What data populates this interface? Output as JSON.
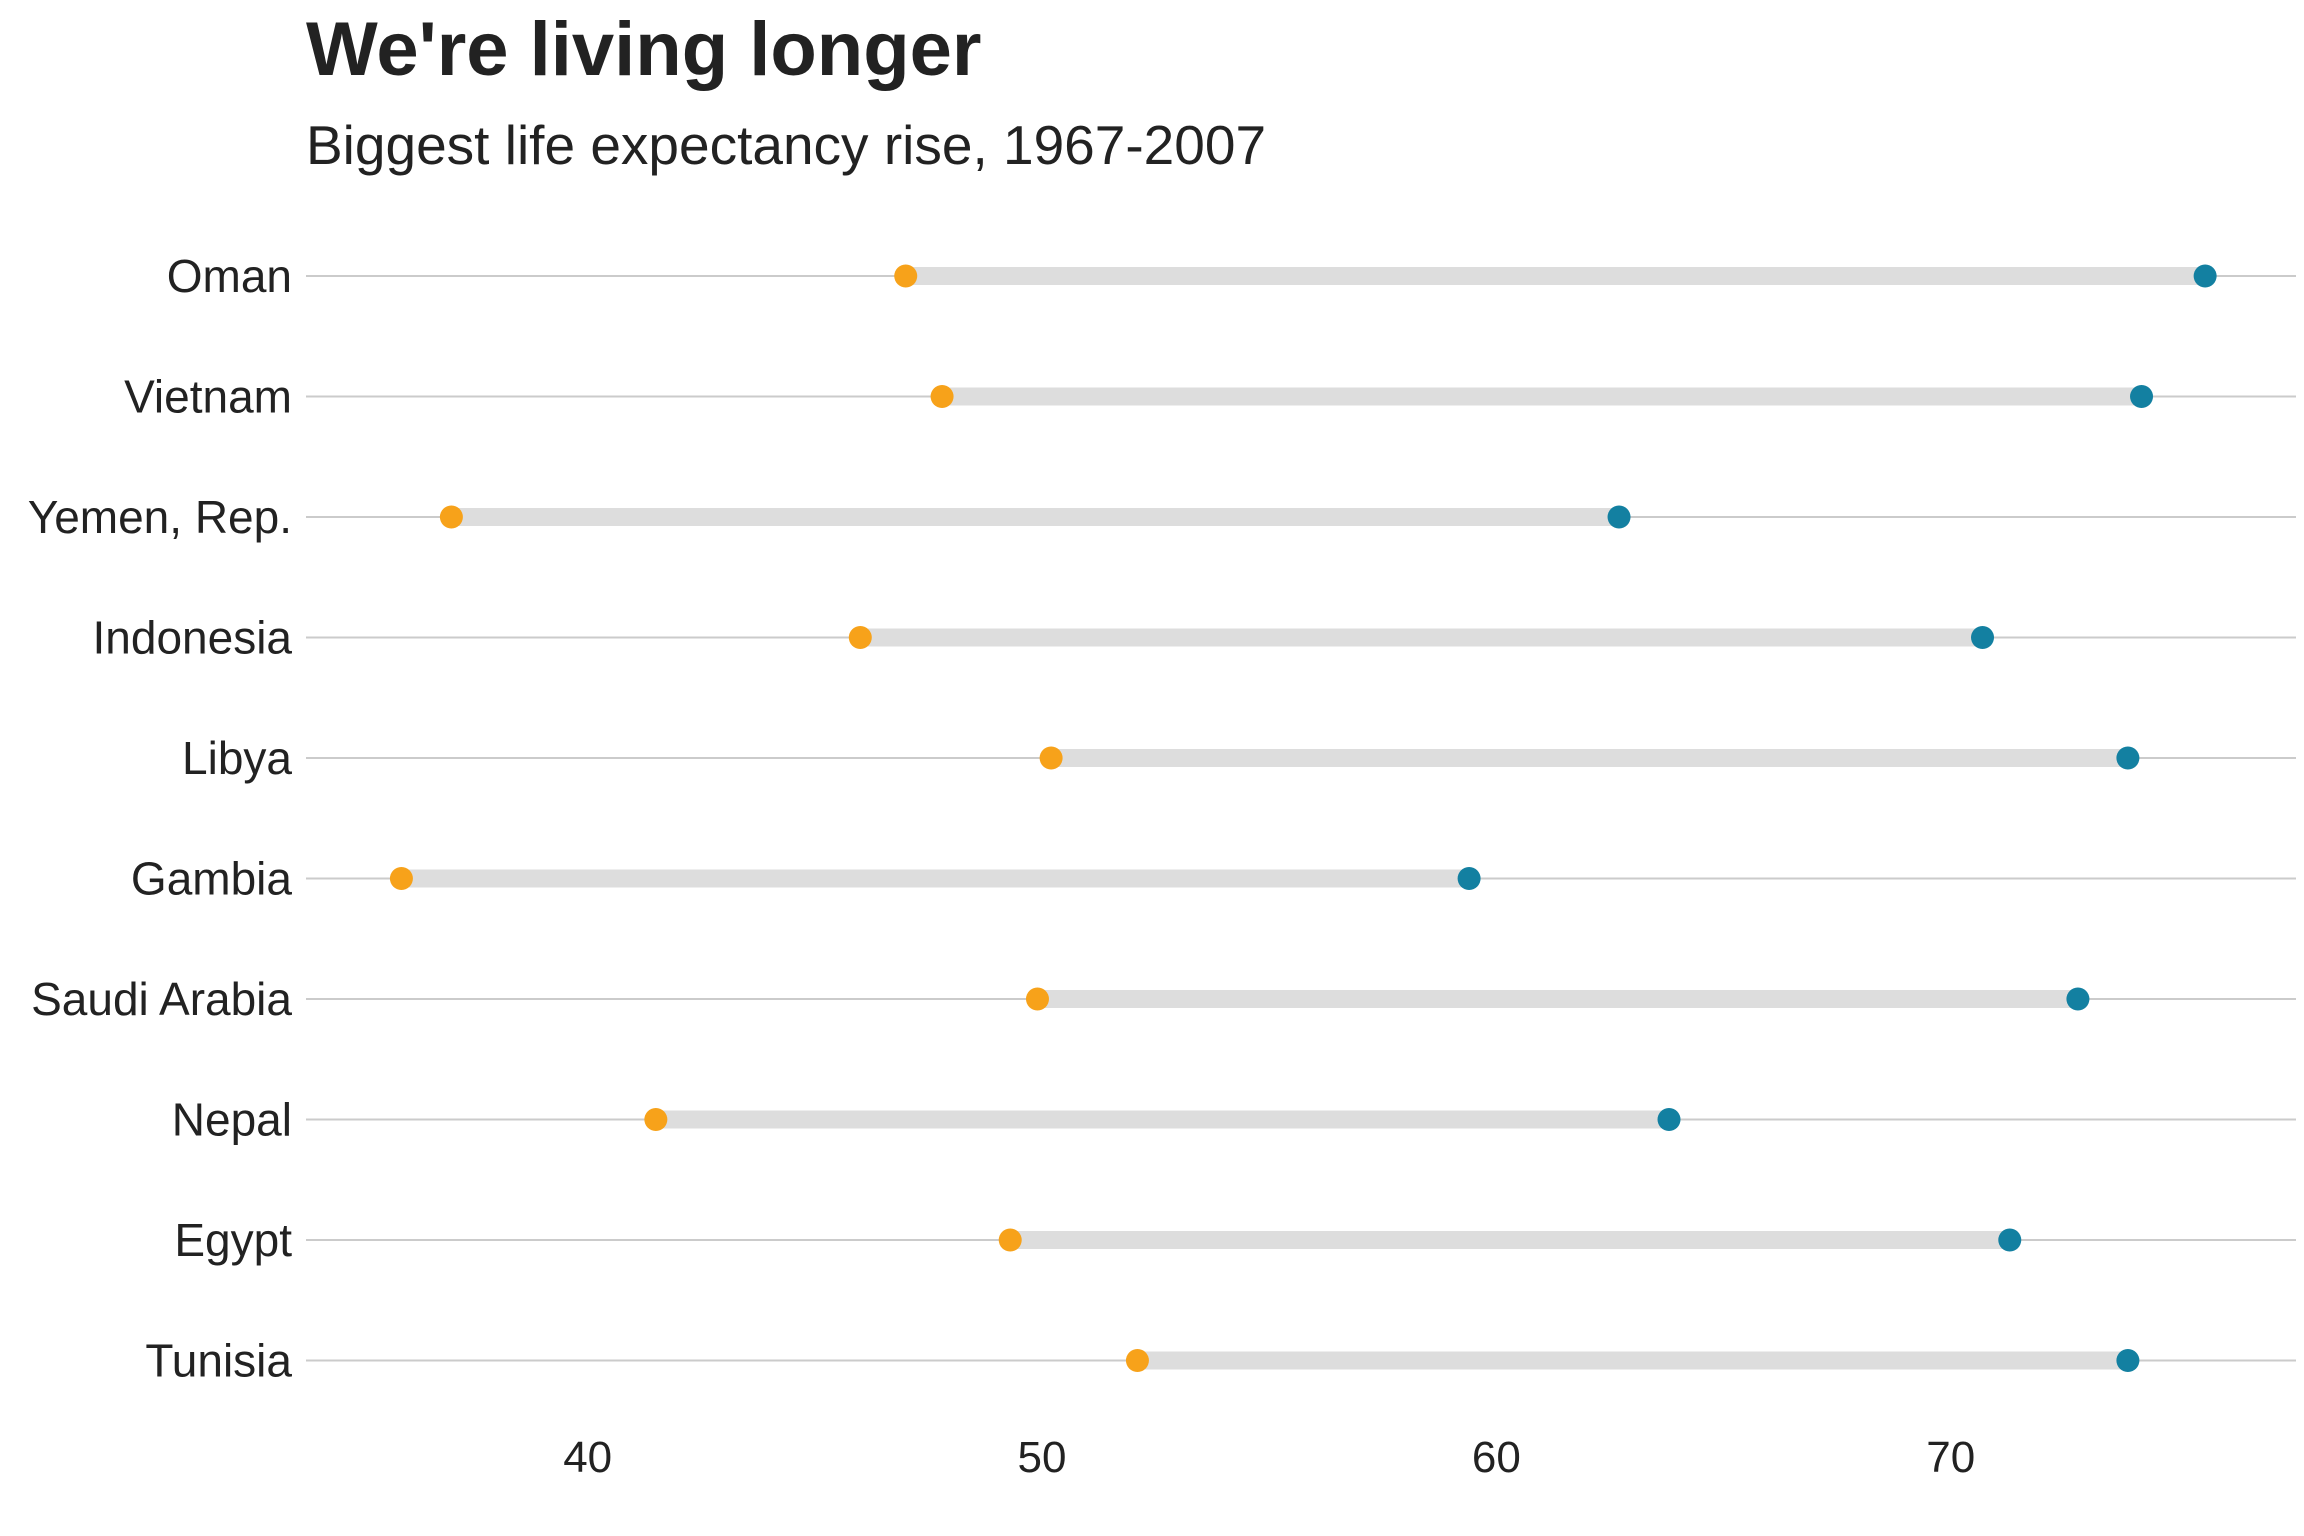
{
  "chart_data": {
    "type": "dumbbell",
    "title": "We're living longer",
    "subtitle": "Biggest life expectancy rise, 1967-2007",
    "xlabel": "",
    "ylabel": "",
    "xlim": [
      33.8,
      77.6
    ],
    "xticks": [
      40,
      50,
      60,
      70
    ],
    "grid": "horizontal",
    "categories": [
      "Oman",
      "Vietnam",
      "Yemen, Rep.",
      "Indonesia",
      "Libya",
      "Gambia",
      "Saudi Arabia",
      "Nepal",
      "Egypt",
      "Tunisia"
    ],
    "series": [
      {
        "values": [
          47.0,
          47.8,
          37.0,
          46.0,
          50.2,
          35.9,
          49.9,
          41.5,
          49.3,
          52.1
        ],
        "color": "#F7A21A"
      },
      {
        "values": [
          75.6,
          74.2,
          62.7,
          70.7,
          73.9,
          59.4,
          72.8,
          63.8,
          71.3,
          73.9
        ],
        "color": "#1380A1"
      }
    ],
    "connector_color": "#DDDDDD",
    "gridline_color": "#CBCBCB"
  }
}
